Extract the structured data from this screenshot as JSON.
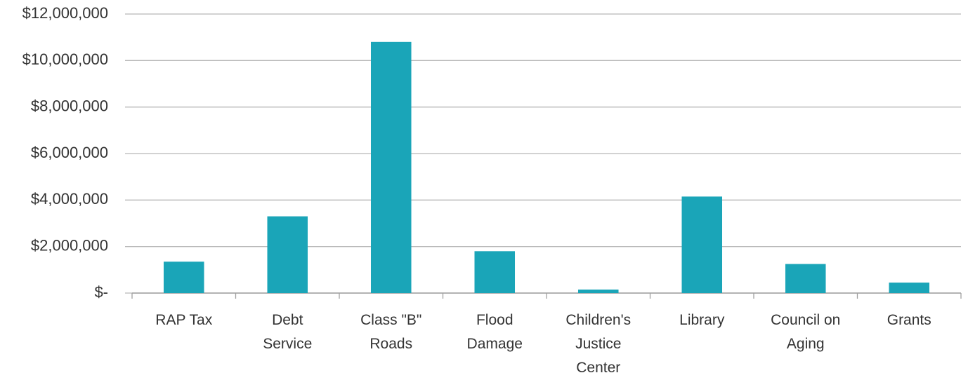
{
  "chart_data": {
    "type": "bar",
    "categories": [
      "RAP Tax",
      "Debt Service",
      "Class \"B\" Roads",
      "Flood Damage",
      "Children's Justice Center",
      "Library",
      "Council on Aging",
      "Grants"
    ],
    "values": [
      1350000,
      3300000,
      10800000,
      1800000,
      150000,
      4150000,
      1250000,
      450000
    ],
    "color": "#1aa5b8",
    "ylim": [
      0,
      12000000
    ],
    "yticks": [
      {
        "value": 0,
        "label": "$-"
      },
      {
        "value": 2000000,
        "label": "$2,000,000"
      },
      {
        "value": 4000000,
        "label": "$4,000,000"
      },
      {
        "value": 6000000,
        "label": "$6,000,000"
      },
      {
        "value": 8000000,
        "label": "$8,000,000"
      },
      {
        "value": 10000000,
        "label": "$10,000,000"
      },
      {
        "value": 12000000,
        "label": "$12,000,000"
      }
    ],
    "grid": true
  }
}
